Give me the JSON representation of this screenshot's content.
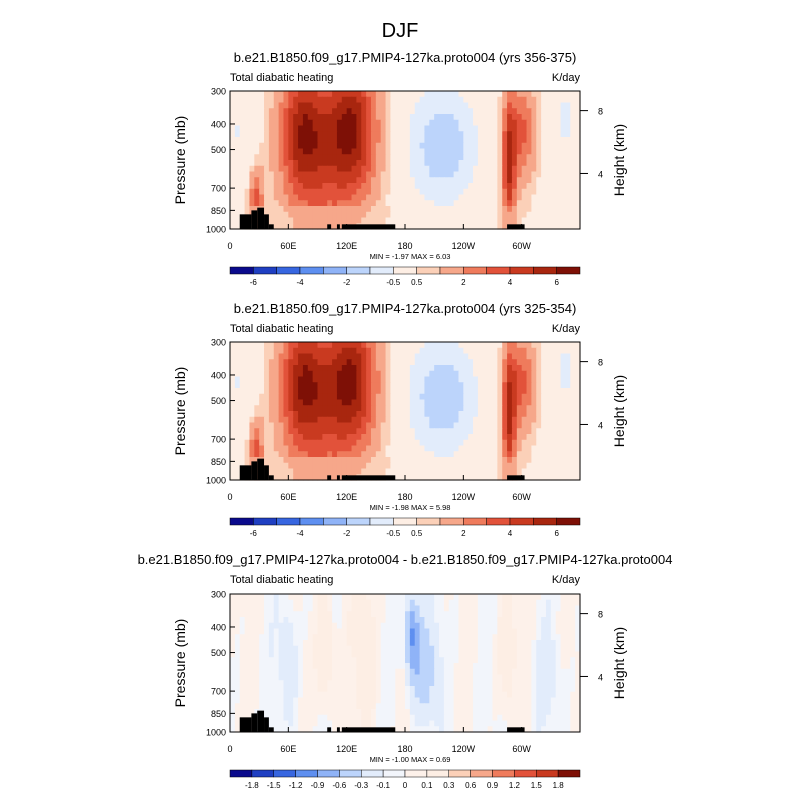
{
  "page_title": "DJF",
  "chart_data": [
    {
      "type": "heatmap",
      "title": "b.e21.B1850.f09_g17.PMIP4-127ka.proto004 (yrs 356-375)",
      "subtitle_left": "Total diabatic heating",
      "subtitle_right": "K/day",
      "ylabel": "Pressure (mb)",
      "ylabel_right": "Height (km)",
      "x_ticks": [
        "0",
        "60E",
        "120E",
        "180",
        "120W",
        "60W"
      ],
      "y_ticks": [
        "300",
        "400",
        "500",
        "700",
        "850",
        "1000"
      ],
      "y_right_ticks": [
        "8",
        "4"
      ],
      "min_max_label": "MIN = -1.97  MAX =  6.03",
      "min": -1.97,
      "max": 6.03,
      "colorbar_labels": [
        "-6",
        "-4",
        "-2",
        "-0.5",
        "0.5",
        "2",
        "4",
        "6"
      ],
      "colorbar_colors": [
        "#0a0a8c",
        "#1f3fc2",
        "#3766e0",
        "#5e8ff0",
        "#8fb3f7",
        "#bcd4fb",
        "#e2ecfb",
        "#fdeee4",
        "#fbd0b8",
        "#f6a78a",
        "#ef7b5c",
        "#e2523a",
        "#c93a20",
        "#a8260f",
        "#7e1006"
      ]
    },
    {
      "type": "heatmap",
      "title": "b.e21.B1850.f09_g17.PMIP4-127ka.proto004 (yrs 325-354)",
      "subtitle_left": "Total diabatic heating",
      "subtitle_right": "K/day",
      "ylabel": "Pressure (mb)",
      "ylabel_right": "Height (km)",
      "x_ticks": [
        "0",
        "60E",
        "120E",
        "180",
        "120W",
        "60W"
      ],
      "y_ticks": [
        "300",
        "400",
        "500",
        "700",
        "850",
        "1000"
      ],
      "y_right_ticks": [
        "8",
        "4"
      ],
      "min_max_label": "MIN = -1.98  MAX =  5.98",
      "min": -1.98,
      "max": 5.98,
      "colorbar_labels": [
        "-6",
        "-4",
        "-2",
        "-0.5",
        "0.5",
        "2",
        "4",
        "6"
      ],
      "colorbar_colors": [
        "#0a0a8c",
        "#1f3fc2",
        "#3766e0",
        "#5e8ff0",
        "#8fb3f7",
        "#bcd4fb",
        "#e2ecfb",
        "#fdeee4",
        "#fbd0b8",
        "#f6a78a",
        "#ef7b5c",
        "#e2523a",
        "#c93a20",
        "#a8260f",
        "#7e1006"
      ]
    },
    {
      "type": "heatmap",
      "title": "b.e21.B1850.f09_g17.PMIP4-127ka.proto004 - b.e21.B1850.f09_g17.PMIP4-127ka.proto004",
      "subtitle_left": "Total diabatic heating",
      "subtitle_right": "K/day",
      "ylabel": "Pressure (mb)",
      "ylabel_right": "Height (km)",
      "x_ticks": [
        "0",
        "60E",
        "120E",
        "180",
        "120W",
        "60W"
      ],
      "y_ticks": [
        "300",
        "400",
        "500",
        "700",
        "850",
        "1000"
      ],
      "y_right_ticks": [
        "8",
        "4"
      ],
      "min_max_label": "MIN = -1.00  MAX =  0.69",
      "min": -1.0,
      "max": 0.69,
      "colorbar_labels": [
        "-1.8",
        "-1.5",
        "-1.2",
        "-0.9",
        "-0.6",
        "-0.3",
        "-0.1",
        "0",
        "0.1",
        "0.3",
        "0.6",
        "0.9",
        "1.2",
        "1.5",
        "1.8"
      ],
      "colorbar_colors": [
        "#0a0a8c",
        "#1f3fc2",
        "#3766e0",
        "#5e8ff0",
        "#8fb3f7",
        "#bcd4fb",
        "#e2ecfb",
        "#f2f5fb",
        "#fdf1ea",
        "#fdeee4",
        "#fbd0b8",
        "#f6a78a",
        "#ef7b5c",
        "#e2523a",
        "#c93a20",
        "#7e1006"
      ]
    }
  ]
}
